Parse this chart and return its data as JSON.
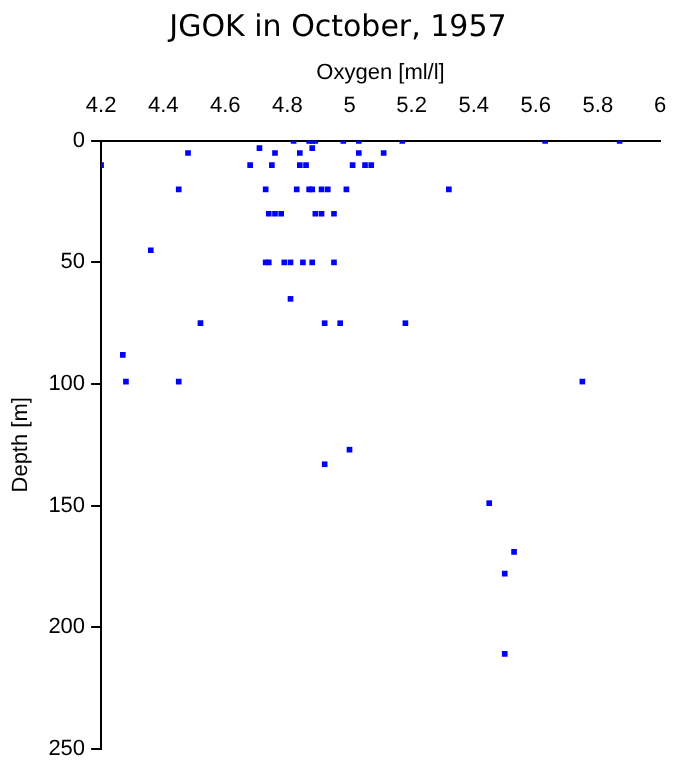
{
  "chart_data": {
    "type": "scatter",
    "title": "JGOK in October, 1957",
    "xlabel": "Oxygen [ml/l]",
    "ylabel": "Depth [m]",
    "x": [
      4.82,
      4.87,
      4.88,
      4.89,
      4.98,
      5.03,
      5.17,
      5.63,
      5.87,
      4.71,
      4.88,
      4.48,
      4.76,
      4.84,
      5.03,
      5.11,
      4.2,
      4.68,
      4.75,
      4.84,
      4.86,
      5.01,
      5.05,
      5.07,
      4.45,
      4.73,
      4.83,
      4.87,
      4.88,
      4.91,
      4.93,
      4.99,
      5.32,
      4.74,
      4.76,
      4.78,
      4.89,
      4.91,
      4.95,
      4.36,
      4.73,
      4.74,
      4.79,
      4.81,
      4.85,
      4.88,
      4.95,
      4.81,
      4.52,
      4.92,
      4.97,
      5.18,
      4.27,
      4.28,
      4.45,
      5.75,
      5.0,
      4.92,
      5.45,
      5.53,
      5.5,
      5.5
    ],
    "values": [
      0,
      0,
      0,
      0,
      0,
      0,
      0,
      0,
      0,
      3,
      3,
      5,
      5,
      5,
      5,
      5,
      10,
      10,
      10,
      10,
      10,
      10,
      10,
      10,
      20,
      20,
      20,
      20,
      20,
      20,
      20,
      20,
      20,
      30,
      30,
      30,
      30,
      30,
      30,
      45,
      50,
      50,
      50,
      50,
      50,
      50,
      50,
      65,
      75,
      75,
      75,
      75,
      88,
      99,
      99,
      99,
      127,
      133,
      149,
      169,
      178,
      211
    ],
    "color": "#0000ff",
    "marker": "square",
    "grid": false,
    "legend": false,
    "xlim": [
      4.2,
      6
    ],
    "xticks": [
      4.2,
      4.4,
      4.6,
      4.8,
      5,
      5.2,
      5.4,
      5.6,
      5.8,
      6
    ],
    "ylim": [
      250,
      0
    ],
    "yticks": [
      0,
      50,
      100,
      150,
      200,
      250
    ]
  }
}
